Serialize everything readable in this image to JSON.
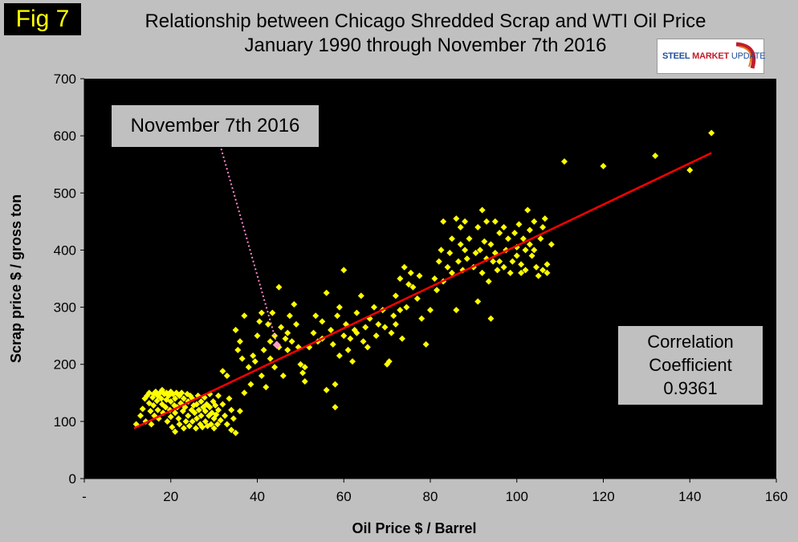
{
  "figure": {
    "fig_label": "Fig 7",
    "logo": {
      "brand": "STEEL",
      "brand2": "MARKET",
      "brand3": "UPDATE"
    }
  },
  "chart_data": {
    "type": "scatter",
    "title": "Relationship between Chicago Shredded Scrap and WTI Oil Price",
    "subtitle": "January 1990 through November 7th 2016",
    "xlabel": "Oil Price $ / Barrel",
    "ylabel": "Scrap price $ / gross ton",
    "xlim": [
      0,
      160
    ],
    "ylim": [
      0,
      700
    ],
    "xticks": [
      0,
      20,
      40,
      60,
      80,
      100,
      120,
      140,
      160
    ],
    "xtick_labels": [
      "-",
      "20",
      "40",
      "60",
      "80",
      "100",
      "120",
      "140",
      "160"
    ],
    "yticks": [
      0,
      100,
      200,
      300,
      400,
      500,
      600,
      700
    ],
    "ytick_labels": [
      "0",
      "100",
      "200",
      "300",
      "400",
      "500",
      "600",
      "700"
    ],
    "grid": false,
    "colors": {
      "points": "#ffff00",
      "trendline": "#ff0000",
      "plot_bg": "#000000",
      "figure_bg": "#c0c0c0",
      "highlight": "#ff99cc",
      "leader": "#ff88cc"
    },
    "trendline": {
      "from": [
        11.5,
        88
      ],
      "to": [
        145,
        570
      ]
    },
    "annotations": [
      {
        "text": "November 7th 2016",
        "points_to": [
          44.5,
          236
        ]
      }
    ],
    "correlation": {
      "line1": "Correlation",
      "line2": "Coefficient",
      "value": "0.9361"
    },
    "highlight_point": [
      44.5,
      234
    ],
    "points": [
      [
        12,
        95
      ],
      [
        13,
        110
      ],
      [
        13.5,
        122
      ],
      [
        14,
        140
      ],
      [
        14.2,
        100
      ],
      [
        14.5,
        145
      ],
      [
        15,
        150
      ],
      [
        15,
        132
      ],
      [
        15.3,
        118
      ],
      [
        15.5,
        95
      ],
      [
        15.8,
        142
      ],
      [
        16,
        148
      ],
      [
        16,
        128
      ],
      [
        16.2,
        110
      ],
      [
        16.5,
        152
      ],
      [
        16.8,
        136
      ],
      [
        17,
        145
      ],
      [
        17,
        120
      ],
      [
        17.2,
        105
      ],
      [
        17.5,
        150
      ],
      [
        17.8,
        140
      ],
      [
        18,
        155
      ],
      [
        18,
        130
      ],
      [
        18.2,
        115
      ],
      [
        18.5,
        148
      ],
      [
        18.8,
        125
      ],
      [
        19,
        150
      ],
      [
        19,
        138
      ],
      [
        19.2,
        100
      ],
      [
        19.5,
        145
      ],
      [
        19.8,
        120
      ],
      [
        20,
        152
      ],
      [
        20,
        135
      ],
      [
        20,
        108
      ],
      [
        20.3,
        90
      ],
      [
        20.5,
        148
      ],
      [
        20.8,
        128
      ],
      [
        21,
        140
      ],
      [
        21,
        115
      ],
      [
        21,
        82
      ],
      [
        21.3,
        150
      ],
      [
        21.5,
        125
      ],
      [
        21.8,
        105
      ],
      [
        22,
        145
      ],
      [
        22,
        95
      ],
      [
        22.3,
        132
      ],
      [
        22.5,
        150
      ],
      [
        22.8,
        118
      ],
      [
        23,
        140
      ],
      [
        23,
        88
      ],
      [
        23.3,
        125
      ],
      [
        23.5,
        100
      ],
      [
        23.8,
        148
      ],
      [
        24,
        135
      ],
      [
        24,
        110
      ],
      [
        24.3,
        92
      ],
      [
        24.5,
        145
      ],
      [
        24.8,
        120
      ],
      [
        25,
        140
      ],
      [
        25,
        100
      ],
      [
        25.3,
        128
      ],
      [
        25.5,
        115
      ],
      [
        25.8,
        88
      ],
      [
        26,
        130
      ],
      [
        26,
        105
      ],
      [
        26.3,
        145
      ],
      [
        26.5,
        120
      ],
      [
        26.8,
        95
      ],
      [
        27,
        135
      ],
      [
        27,
        110
      ],
      [
        27.3,
        90
      ],
      [
        27.5,
        125
      ],
      [
        27.8,
        142
      ],
      [
        28,
        118
      ],
      [
        28,
        100
      ],
      [
        28.3,
        130
      ],
      [
        28.5,
        92
      ],
      [
        28.8,
        110
      ],
      [
        29,
        148
      ],
      [
        29,
        125
      ],
      [
        29.3,
        95
      ],
      [
        29.5,
        115
      ],
      [
        29.8,
        135
      ],
      [
        30,
        105
      ],
      [
        30,
        88
      ],
      [
        30.3,
        128
      ],
      [
        30.5,
        112
      ],
      [
        30.8,
        95
      ],
      [
        31,
        120
      ],
      [
        31,
        145
      ],
      [
        31.5,
        102
      ],
      [
        32,
        130
      ],
      [
        32,
        188
      ],
      [
        32.5,
        110
      ],
      [
        33,
        180
      ],
      [
        33,
        95
      ],
      [
        33.5,
        140
      ],
      [
        34,
        85
      ],
      [
        34,
        120
      ],
      [
        34.5,
        105
      ],
      [
        35,
        260
      ],
      [
        35,
        80
      ],
      [
        35.5,
        225
      ],
      [
        36,
        118
      ],
      [
        36,
        240
      ],
      [
        36.5,
        210
      ],
      [
        37,
        285
      ],
      [
        37,
        150
      ],
      [
        38,
        195
      ],
      [
        38.5,
        165
      ],
      [
        39,
        215
      ],
      [
        39.5,
        205
      ],
      [
        40,
        250
      ],
      [
        40.5,
        275
      ],
      [
        41,
        290
      ],
      [
        41,
        180
      ],
      [
        41.5,
        225
      ],
      [
        42,
        160
      ],
      [
        42.5,
        270
      ],
      [
        43,
        240
      ],
      [
        43,
        210
      ],
      [
        43.5,
        290
      ],
      [
        44,
        250
      ],
      [
        44,
        195
      ],
      [
        45,
        335
      ],
      [
        45,
        230
      ],
      [
        45.5,
        265
      ],
      [
        46,
        180
      ],
      [
        46.5,
        245
      ],
      [
        47,
        255
      ],
      [
        47,
        225
      ],
      [
        47.5,
        285
      ],
      [
        48,
        240
      ],
      [
        48.5,
        305
      ],
      [
        49,
        270
      ],
      [
        49.5,
        230
      ],
      [
        50,
        200
      ],
      [
        50.5,
        185
      ],
      [
        51,
        170
      ],
      [
        51,
        195
      ],
      [
        52,
        230
      ],
      [
        53,
        255
      ],
      [
        53.5,
        285
      ],
      [
        54,
        240
      ],
      [
        55,
        275
      ],
      [
        55,
        245
      ],
      [
        56,
        325
      ],
      [
        56,
        155
      ],
      [
        57,
        260
      ],
      [
        57.5,
        235
      ],
      [
        58,
        165
      ],
      [
        58,
        125
      ],
      [
        58.5,
        285
      ],
      [
        59,
        300
      ],
      [
        59,
        215
      ],
      [
        60,
        250
      ],
      [
        60,
        365
      ],
      [
        60.5,
        270
      ],
      [
        61,
        225
      ],
      [
        61.5,
        245
      ],
      [
        62,
        205
      ],
      [
        62.5,
        260
      ],
      [
        63,
        290
      ],
      [
        63,
        255
      ],
      [
        64,
        320
      ],
      [
        64.5,
        240
      ],
      [
        65,
        265
      ],
      [
        65.5,
        230
      ],
      [
        66,
        280
      ],
      [
        67,
        300
      ],
      [
        67.5,
        250
      ],
      [
        68,
        270
      ],
      [
        69,
        295
      ],
      [
        69.5,
        265
      ],
      [
        70,
        200
      ],
      [
        70.5,
        205
      ],
      [
        71,
        255
      ],
      [
        71.5,
        285
      ],
      [
        72,
        320
      ],
      [
        72,
        270
      ],
      [
        73,
        350
      ],
      [
        73,
        295
      ],
      [
        73.5,
        245
      ],
      [
        74,
        370
      ],
      [
        74.5,
        300
      ],
      [
        75,
        340
      ],
      [
        75.5,
        360
      ],
      [
        76,
        335
      ],
      [
        77,
        315
      ],
      [
        77.5,
        355
      ],
      [
        78,
        280
      ],
      [
        79,
        235
      ],
      [
        80,
        295
      ],
      [
        81,
        350
      ],
      [
        81.5,
        330
      ],
      [
        82,
        380
      ],
      [
        82.5,
        400
      ],
      [
        83,
        450
      ],
      [
        83,
        345
      ],
      [
        84,
        370
      ],
      [
        84.5,
        395
      ],
      [
        85,
        420
      ],
      [
        85,
        360
      ],
      [
        86,
        455
      ],
      [
        86,
        295
      ],
      [
        86.5,
        380
      ],
      [
        87,
        440
      ],
      [
        87,
        410
      ],
      [
        87.5,
        365
      ],
      [
        88,
        450
      ],
      [
        88,
        400
      ],
      [
        88.5,
        385
      ],
      [
        89,
        420
      ],
      [
        90,
        370
      ],
      [
        90.5,
        395
      ],
      [
        91,
        440
      ],
      [
        91,
        310
      ],
      [
        91.5,
        400
      ],
      [
        92,
        470
      ],
      [
        92,
        360
      ],
      [
        92.5,
        415
      ],
      [
        93,
        385
      ],
      [
        93,
        450
      ],
      [
        93.5,
        345
      ],
      [
        94,
        410
      ],
      [
        94,
        280
      ],
      [
        94.5,
        380
      ],
      [
        95,
        450
      ],
      [
        95,
        395
      ],
      [
        95.5,
        365
      ],
      [
        96,
        430
      ],
      [
        96,
        380
      ],
      [
        97,
        440
      ],
      [
        97,
        370
      ],
      [
        97.5,
        400
      ],
      [
        98,
        420
      ],
      [
        98.5,
        360
      ],
      [
        99,
        380
      ],
      [
        99.5,
        430
      ],
      [
        100,
        405
      ],
      [
        100,
        390
      ],
      [
        100.5,
        445
      ],
      [
        101,
        375
      ],
      [
        101,
        360
      ],
      [
        101.5,
        420
      ],
      [
        102,
        400
      ],
      [
        102,
        365
      ],
      [
        102.5,
        470
      ],
      [
        103,
        435
      ],
      [
        103,
        410
      ],
      [
        103.5,
        390
      ],
      [
        104,
        450
      ],
      [
        104,
        400
      ],
      [
        104.5,
        370
      ],
      [
        105,
        355
      ],
      [
        105.5,
        420
      ],
      [
        106,
        440
      ],
      [
        106,
        365
      ],
      [
        106.5,
        455
      ],
      [
        107,
        375
      ],
      [
        107,
        360
      ],
      [
        108,
        410
      ],
      [
        111,
        555
      ],
      [
        120,
        547
      ],
      [
        132,
        565
      ],
      [
        140,
        540
      ],
      [
        145,
        605
      ]
    ]
  }
}
